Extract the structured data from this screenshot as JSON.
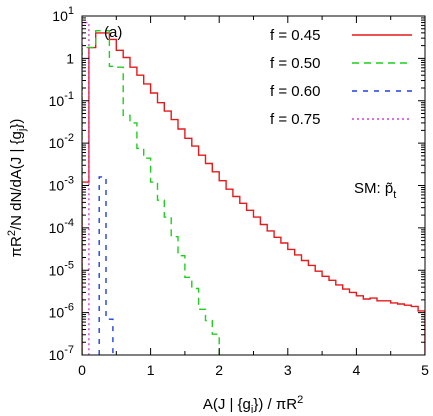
{
  "chart_data": {
    "type": "line",
    "step": true,
    "panel_label": "(a)",
    "xlabel": {
      "main": "A(J | {g",
      "sub": "i",
      "tail": "}) / πR",
      "sup": "2"
    },
    "ylabel": {
      "pre": "πR",
      "sup": "2",
      "mid": "/N dN/dA(J | {g",
      "sub": "j",
      "tail": "})"
    },
    "annotation": {
      "main": "SM: p̃",
      "sub": "t"
    },
    "xlim": [
      0,
      5
    ],
    "ylim_log10": [
      -7,
      1
    ],
    "log_y": true,
    "x_ticks": [
      0,
      1,
      2,
      3,
      4,
      5
    ],
    "y_ticks": [
      {
        "value": 10,
        "base": "10",
        "exp": "1"
      },
      {
        "value": 1,
        "base": "1",
        "exp": ""
      },
      {
        "value": 0.1,
        "base": "10",
        "exp": "-1"
      },
      {
        "value": 0.01,
        "base": "10",
        "exp": "-2"
      },
      {
        "value": 0.001,
        "base": "10",
        "exp": "-3"
      },
      {
        "value": 0.0001,
        "base": "10",
        "exp": "-4"
      },
      {
        "value": 1e-05,
        "base": "10",
        "exp": "-5"
      },
      {
        "value": 1e-06,
        "base": "10",
        "exp": "-6"
      },
      {
        "value": 1e-07,
        "base": "10",
        "exp": "-7"
      }
    ],
    "legend_position": "top-right",
    "series": [
      {
        "name": "f = 0.45",
        "color": "#e41a1c",
        "dash": "",
        "bin_edges": [
          0.0,
          0.1,
          0.2,
          0.3,
          0.4,
          0.5,
          0.6,
          0.7,
          0.8,
          0.9,
          1.0,
          1.1,
          1.2,
          1.3,
          1.4,
          1.5,
          1.6,
          1.7,
          1.8,
          1.9,
          2.0,
          2.1,
          2.2,
          2.3,
          2.4,
          2.5,
          2.6,
          2.7,
          2.8,
          2.9,
          3.0,
          3.1,
          3.2,
          3.3,
          3.4,
          3.5,
          3.6,
          3.7,
          3.8,
          3.9,
          4.0,
          4.1,
          4.2,
          4.3,
          4.4,
          4.5,
          4.6,
          4.7,
          4.8,
          4.9,
          5.0
        ],
        "values": [
          0.0012,
          1.8,
          4.0,
          4.0,
          2.8,
          1.55,
          1.05,
          0.62,
          0.4,
          0.25,
          0.152,
          0.09,
          0.057,
          0.036,
          0.0215,
          0.013,
          0.0085,
          0.0052,
          0.0033,
          0.0021,
          0.0013,
          0.00082,
          0.00055,
          0.00038,
          0.00026,
          0.00018,
          0.00012,
          8.5e-05,
          6e-05,
          4.4e-05,
          3.1e-05,
          2.3e-05,
          1.7e-05,
          1.3e-05,
          9.5e-06,
          7.2e-06,
          5.8e-06,
          4.5e-06,
          3.6e-06,
          3e-06,
          2.5e-06,
          2.1e-06,
          2.2e-06,
          1.9e-06,
          1.9e-06,
          1.7e-06,
          1.6e-06,
          1.5e-06,
          1.4e-06,
          1.1e-06
        ]
      },
      {
        "name": "f = 0.50",
        "color": "#1fce1f",
        "dash": "7,5",
        "bin_edges": [
          0.0,
          0.1,
          0.2,
          0.3,
          0.4,
          0.5,
          0.6,
          0.7,
          0.8,
          0.9,
          1.0,
          1.1,
          1.2,
          1.3,
          1.4,
          1.5,
          1.6,
          1.7,
          1.8,
          1.9,
          2.0,
          2.1
        ],
        "values": [
          1.8,
          1.8,
          4.5,
          4.5,
          0.65,
          0.62,
          0.045,
          0.03,
          0.0075,
          0.0044,
          0.0012,
          0.00045,
          0.00018,
          6.2e-05,
          2.2e-05,
          6.8e-06,
          3.7e-06,
          1.2e-06,
          6.5e-07,
          3.1e-07,
          9e-08
        ]
      },
      {
        "name": "f = 0.60",
        "color": "#1f3fe0",
        "dash": "5,6",
        "bin_edges": [
          0.25,
          0.35,
          0.45
        ],
        "values": [
          0.0016,
          7e-07
        ]
      },
      {
        "name": "f = 0.75",
        "color": "#d43fd4",
        "dash": "2,3",
        "bin_edges": [
          0.0,
          0.05,
          0.1
        ],
        "values": [
          7.0,
          7.0
        ]
      }
    ]
  }
}
